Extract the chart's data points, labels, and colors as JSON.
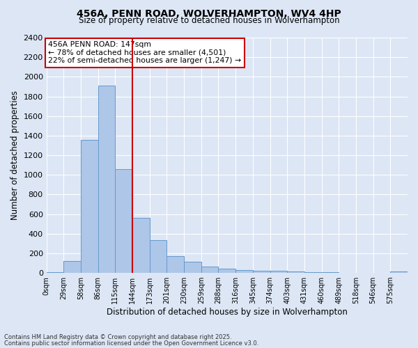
{
  "title_line1": "456A, PENN ROAD, WOLVERHAMPTON, WV4 4HP",
  "title_line2": "Size of property relative to detached houses in Wolverhampton",
  "xlabel": "Distribution of detached houses by size in Wolverhampton",
  "ylabel": "Number of detached properties",
  "bin_labels": [
    "0sqm",
    "29sqm",
    "58sqm",
    "86sqm",
    "115sqm",
    "144sqm",
    "173sqm",
    "201sqm",
    "230sqm",
    "259sqm",
    "288sqm",
    "316sqm",
    "345sqm",
    "374sqm",
    "403sqm",
    "431sqm",
    "460sqm",
    "489sqm",
    "518sqm",
    "546sqm",
    "575sqm"
  ],
  "bar_heights": [
    10,
    120,
    1360,
    1910,
    1060,
    560,
    335,
    170,
    115,
    65,
    40,
    30,
    25,
    20,
    15,
    5,
    5,
    2,
    2,
    0,
    15
  ],
  "bar_color": "#aec6e8",
  "bar_edge_color": "#6699cc",
  "ylim": [
    0,
    2400
  ],
  "yticks": [
    0,
    200,
    400,
    600,
    800,
    1000,
    1200,
    1400,
    1600,
    1800,
    2000,
    2200,
    2400
  ],
  "vline_bin": 5,
  "vline_color": "#cc0000",
  "annotation_title": "456A PENN ROAD: 147sqm",
  "annotation_line1": "← 78% of detached houses are smaller (4,501)",
  "annotation_line2": "22% of semi-detached houses are larger (1,247) →",
  "annotation_box_color": "#ffffff",
  "annotation_box_edge_color": "#cc0000",
  "footer_line1": "Contains HM Land Registry data © Crown copyright and database right 2025.",
  "footer_line2": "Contains public sector information licensed under the Open Government Licence v3.0.",
  "bg_color": "#dce6f5",
  "plot_bg_color": "#dce6f5"
}
